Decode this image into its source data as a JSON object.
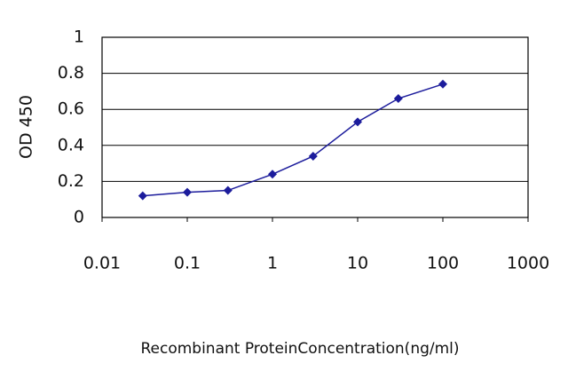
{
  "chart_data": {
    "type": "line",
    "x_label": "Recombinant ProteinConcentration(ng/ml)",
    "y_label": "OD 450",
    "x_scale": "log",
    "grid": true,
    "series": [
      {
        "color": "#1c1c9c",
        "x": [
          0.03,
          0.1,
          0.3,
          1,
          3,
          10,
          30,
          100
        ],
        "values": [
          0.12,
          0.14,
          0.15,
          0.24,
          0.34,
          0.53,
          0.66,
          0.74
        ]
      }
    ],
    "xlim": [
      0.01,
      1000
    ],
    "xticks": [
      0.01,
      0.1,
      1,
      10,
      100,
      1000
    ],
    "ylim": [
      0,
      1
    ],
    "yticks": [
      0,
      0.2,
      0.4,
      0.6,
      0.8,
      1
    ]
  }
}
